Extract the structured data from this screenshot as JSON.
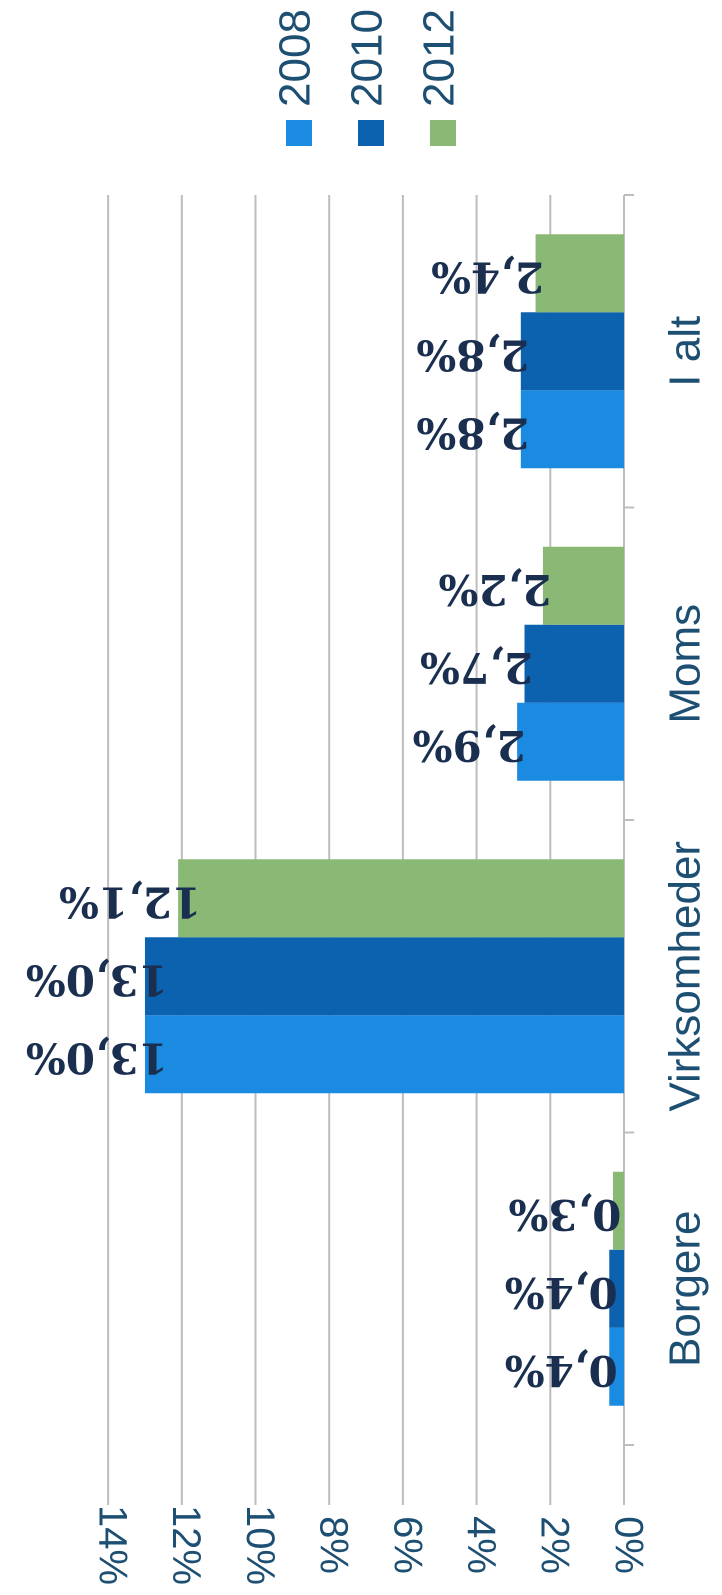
{
  "chart_data": {
    "type": "bar",
    "orientation": "horizontal",
    "categories": [
      "Borgere",
      "Virksomheder",
      "Moms",
      "I alt"
    ],
    "series": [
      {
        "name": "2008",
        "color": "#1a8be0",
        "values": [
          0.4,
          13.0,
          2.9,
          2.8
        ],
        "labels": [
          "0,4%",
          "13,0%",
          "2,9%",
          "2,8%"
        ]
      },
      {
        "name": "2010",
        "color": "#0d62b0",
        "values": [
          0.4,
          13.0,
          2.7,
          2.8
        ],
        "labels": [
          "0,4%",
          "13,0%",
          "2,7%",
          "2,8%"
        ]
      },
      {
        "name": "2012",
        "color": "#8ab875",
        "values": [
          0.3,
          12.1,
          2.2,
          2.4
        ],
        "labels": [
          "0,3%",
          "12,1%",
          "2,2%",
          "2,4%"
        ]
      }
    ],
    "value_axis": {
      "min": 0,
      "max": 14,
      "step": 2,
      "tick_labels": [
        "0%",
        "2%",
        "4%",
        "6%",
        "8%",
        "10%",
        "12%",
        "14%"
      ]
    },
    "grid": true,
    "legend_position": "top",
    "title": "",
    "xlabel": "",
    "ylabel": "",
    "rotated": "90° clockwise"
  }
}
